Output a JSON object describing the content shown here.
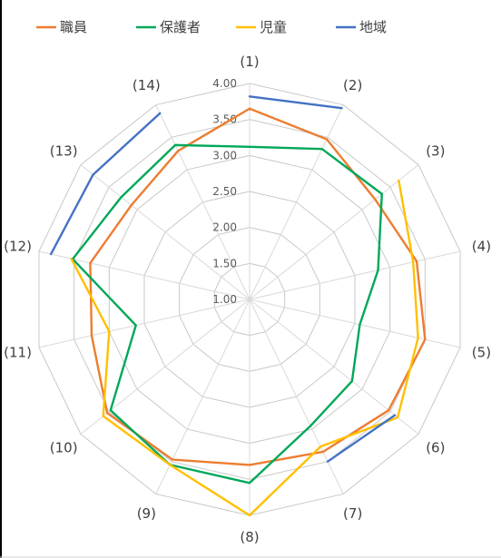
{
  "chart_data": {
    "type": "radar",
    "categories": [
      "(1)",
      "(2)",
      "(3)",
      "(4)",
      "(5)",
      "(6)",
      "(7)",
      "(8)",
      "(9)",
      "(10)",
      "(11)",
      "(12)",
      "(13)",
      "(14)"
    ],
    "rlim": [
      1.0,
      4.0
    ],
    "ticks": [
      "1.00",
      "1.50",
      "2.00",
      "2.50",
      "3.00",
      "3.50",
      "4.00"
    ],
    "grid": true,
    "legend_position": "top",
    "series": [
      {
        "name": "職員",
        "color": "#ED7D31",
        "values": [
          3.65,
          3.47,
          3.23,
          3.38,
          3.5,
          3.47,
          3.35,
          3.3,
          3.47,
          3.53,
          3.25,
          3.27,
          3.1,
          3.29
        ]
      },
      {
        "name": "保護者",
        "color": "#00A859",
        "values": [
          3.12,
          3.32,
          3.35,
          2.83,
          2.57,
          2.82,
          2.95,
          3.55,
          3.55,
          3.47,
          2.62,
          3.52,
          3.28,
          3.38
        ]
      },
      {
        "name": "児童",
        "color": "#FFC000",
        "values": [
          3.33,
          null,
          3.65,
          3.33,
          3.4,
          3.63,
          3.27,
          4.0,
          3.55,
          3.6,
          3.0,
          3.54,
          null,
          null
        ]
      },
      {
        "name": "地域",
        "color": "#4472C4",
        "values": [
          3.82,
          3.95,
          null,
          null,
          null,
          3.58,
          3.5,
          null,
          null,
          null,
          null,
          3.83,
          3.78,
          3.87
        ]
      }
    ]
  }
}
